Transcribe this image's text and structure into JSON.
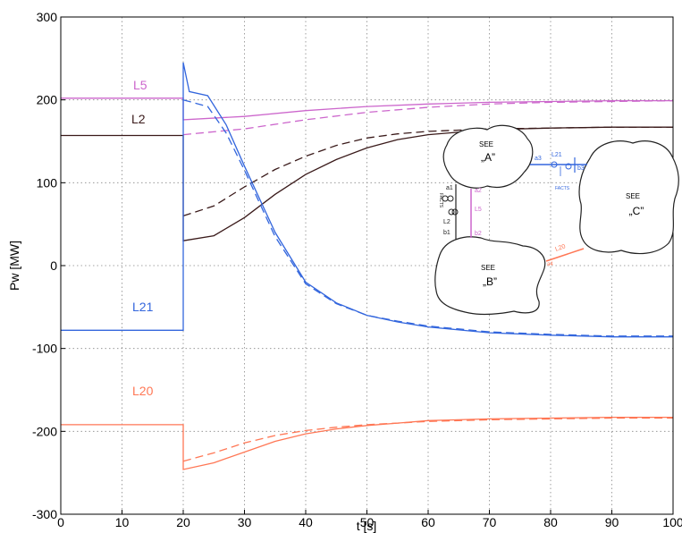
{
  "chart_data": {
    "type": "line",
    "xlabel": "t [s]",
    "ylabel": "Pw [MW]",
    "xlim": [
      0,
      100
    ],
    "ylim": [
      -300,
      300
    ],
    "xticks": [
      0,
      10,
      20,
      30,
      40,
      50,
      60,
      70,
      80,
      90,
      100
    ],
    "yticks": [
      -300,
      -200,
      -100,
      0,
      100,
      200,
      300
    ],
    "grid": true,
    "series": [
      {
        "name": "L5",
        "color": "#cc66cc",
        "solid": [
          [
            0,
            202
          ],
          [
            20,
            202
          ],
          [
            20,
            176
          ],
          [
            30,
            180
          ],
          [
            40,
            187
          ],
          [
            50,
            192
          ],
          [
            60,
            195
          ],
          [
            70,
            197
          ],
          [
            80,
            198
          ],
          [
            90,
            199
          ],
          [
            100,
            199
          ]
        ],
        "dashed": [
          [
            20,
            158
          ],
          [
            30,
            165
          ],
          [
            40,
            176
          ],
          [
            50,
            185
          ],
          [
            60,
            191
          ],
          [
            70,
            195
          ],
          [
            80,
            197
          ],
          [
            90,
            198
          ],
          [
            100,
            199
          ]
        ]
      },
      {
        "name": "L2",
        "color": "#3a1a1a",
        "solid": [
          [
            0,
            157
          ],
          [
            20,
            157
          ],
          [
            20,
            30
          ],
          [
            25,
            36
          ],
          [
            30,
            58
          ],
          [
            35,
            86
          ],
          [
            40,
            110
          ],
          [
            45,
            128
          ],
          [
            50,
            142
          ],
          [
            55,
            152
          ],
          [
            60,
            158
          ],
          [
            70,
            164
          ],
          [
            80,
            166
          ],
          [
            90,
            167
          ],
          [
            100,
            167
          ]
        ],
        "dashed": [
          [
            20,
            60
          ],
          [
            25,
            72
          ],
          [
            30,
            95
          ],
          [
            35,
            116
          ],
          [
            40,
            132
          ],
          [
            45,
            145
          ],
          [
            50,
            154
          ],
          [
            55,
            159
          ],
          [
            60,
            162
          ],
          [
            70,
            165
          ],
          [
            80,
            166
          ],
          [
            90,
            167
          ],
          [
            100,
            167
          ]
        ]
      },
      {
        "name": "L21",
        "color": "#3366dd",
        "solid": [
          [
            0,
            -78
          ],
          [
            20,
            -78
          ],
          [
            20,
            245
          ],
          [
            21,
            210
          ],
          [
            24,
            205
          ],
          [
            27,
            170
          ],
          [
            30,
            120
          ],
          [
            35,
            40
          ],
          [
            40,
            -20
          ],
          [
            45,
            -45
          ],
          [
            50,
            -60
          ],
          [
            55,
            -68
          ],
          [
            60,
            -74
          ],
          [
            70,
            -81
          ],
          [
            80,
            -84
          ],
          [
            90,
            -86
          ],
          [
            100,
            -86
          ]
        ],
        "dashed": [
          [
            20,
            200
          ],
          [
            24,
            192
          ],
          [
            27,
            160
          ],
          [
            30,
            115
          ],
          [
            35,
            35
          ],
          [
            40,
            -22
          ],
          [
            45,
            -46
          ],
          [
            50,
            -60
          ],
          [
            55,
            -67
          ],
          [
            60,
            -73
          ],
          [
            70,
            -80
          ],
          [
            80,
            -83
          ],
          [
            90,
            -85
          ],
          [
            100,
            -85
          ]
        ]
      },
      {
        "name": "L20",
        "color": "#ff7755",
        "solid": [
          [
            0,
            -192
          ],
          [
            20,
            -192
          ],
          [
            20,
            -246
          ],
          [
            25,
            -238
          ],
          [
            30,
            -225
          ],
          [
            35,
            -212
          ],
          [
            40,
            -203
          ],
          [
            45,
            -197
          ],
          [
            50,
            -193
          ],
          [
            55,
            -190
          ],
          [
            60,
            -187
          ],
          [
            70,
            -185
          ],
          [
            80,
            -184
          ],
          [
            90,
            -183
          ],
          [
            100,
            -183
          ]
        ],
        "dashed": [
          [
            20,
            -236
          ],
          [
            25,
            -226
          ],
          [
            30,
            -214
          ],
          [
            35,
            -205
          ],
          [
            40,
            -199
          ],
          [
            45,
            -195
          ],
          [
            50,
            -192
          ],
          [
            55,
            -190
          ],
          [
            60,
            -188
          ],
          [
            70,
            -186
          ],
          [
            80,
            -185
          ],
          [
            90,
            -184
          ],
          [
            100,
            -184
          ]
        ]
      }
    ]
  },
  "inset": {
    "areas": [
      {
        "label": "SEE",
        "name": "„A”"
      },
      {
        "label": "SEE",
        "name": "„B”"
      },
      {
        "label": "SEE",
        "name": "„C”"
      }
    ],
    "nodes": [
      "a1",
      "a2",
      "a3",
      "b1",
      "b2",
      "b3",
      "a4"
    ],
    "lines": [
      "L21",
      "L5",
      "L2",
      "L20"
    ],
    "facts": [
      "FACTS",
      "FACTS"
    ]
  }
}
